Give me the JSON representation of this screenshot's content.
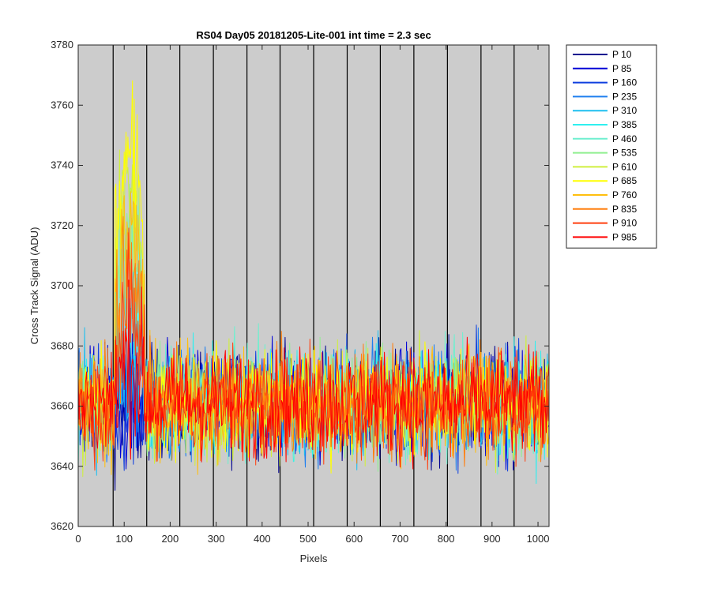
{
  "chart_data": {
    "type": "line",
    "title": "RS04 Day05 20181205-Lite-001 int time = 2.3 sec",
    "xlabel": "Pixels",
    "ylabel": "Cross Track Signal (ADU)",
    "xlim": [
      0,
      1024
    ],
    "ylim": [
      3620,
      3780
    ],
    "xticks": [
      0,
      100,
      200,
      300,
      400,
      500,
      600,
      700,
      800,
      900,
      1000
    ],
    "yticks": [
      3620,
      3640,
      3660,
      3680,
      3700,
      3720,
      3740,
      3760,
      3780
    ],
    "background": "#cccccc",
    "grid": false,
    "vertical_dividers": [
      76,
      149,
      221,
      294,
      367,
      439,
      512,
      585,
      657,
      730,
      803,
      876,
      948
    ],
    "baseline_mean": 3661,
    "baseline_spread": 9,
    "bump": {
      "x_start": 80,
      "x_end": 145,
      "note": "elevated signal region"
    },
    "legend_position": "outside-right",
    "series": [
      {
        "name": "P 10",
        "color": "#00008f",
        "bump_peak": 3668
      },
      {
        "name": "P 85",
        "color": "#0000d6",
        "bump_peak": 3670
      },
      {
        "name": "P 160",
        "color": "#0f3fdf",
        "bump_peak": 3672
      },
      {
        "name": "P 235",
        "color": "#1f7fef",
        "bump_peak": 3676
      },
      {
        "name": "P 310",
        "color": "#1fbfef",
        "bump_peak": 3686
      },
      {
        "name": "P 385",
        "color": "#2fefef",
        "bump_peak": 3700
      },
      {
        "name": "P 460",
        "color": "#6fefcf",
        "bump_peak": 3716
      },
      {
        "name": "P 535",
        "color": "#8fef8f",
        "bump_peak": 3728
      },
      {
        "name": "P 610",
        "color": "#cfef3f",
        "bump_peak": 3738
      },
      {
        "name": "P 685",
        "color": "#ffff00",
        "bump_peak": 3750
      },
      {
        "name": "P 760",
        "color": "#ffbf0f",
        "bump_peak": 3724
      },
      {
        "name": "P 835",
        "color": "#ff7f0f",
        "bump_peak": 3708
      },
      {
        "name": "P 910",
        "color": "#ff3f0f",
        "bump_peak": 3696
      },
      {
        "name": "P 985",
        "color": "#ff0000",
        "bump_peak": 3682
      }
    ]
  }
}
